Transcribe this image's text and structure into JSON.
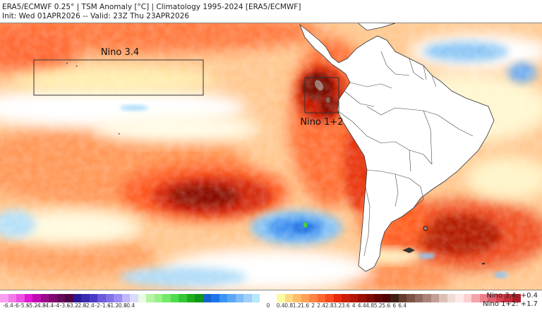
{
  "header": {
    "line1": "ERA5/ECMWF 0.25° | TSM Anomaly [°C] | Climatology 1995-2024 [ERA5/ECMWF]",
    "line2": "Init: Wed 01APR2026 -- Valid: 23Z Thu 23APR2026"
  },
  "map": {
    "regions": [
      {
        "label": "Nino 3.4"
      },
      {
        "label": "Nino 1+2"
      }
    ]
  },
  "colorbar": {
    "unit": "°C",
    "tick_labels": [
      "-6.4",
      "-6",
      "-5.6",
      "-5.2",
      "-4.8",
      "-4.4",
      "-4",
      "-3.6",
      "-3.2",
      "-2.8",
      "-2.4",
      "-2",
      "-1.6",
      "-1.2",
      "-0.8",
      "-0.4",
      "0",
      "0.4",
      "0.8",
      "1.2",
      "1.6",
      "2",
      "2.4",
      "2.8",
      "3.2",
      "3.6",
      "4",
      "4.4",
      "4.8",
      "5.2",
      "5.6",
      "6",
      "6.4"
    ],
    "neg_colors": [
      "#f8a0f0",
      "#f47ae8",
      "#ee52e0",
      "#e21ad4",
      "#c00cb0",
      "#9c0a8c",
      "#800870",
      "#640a5a",
      "#4e0646",
      "#2c1896",
      "#3a2ab0",
      "#4a3ac8",
      "#6c5ad8",
      "#8272e8",
      "#9c8cf4",
      "#c0b8fa",
      "#dcdafc",
      "#e8fce0",
      "#b4f4a4",
      "#98f088",
      "#74e868",
      "#50dc50",
      "#34c834",
      "#1cac1c",
      "#10961a",
      "#1464d0",
      "#1c74ea",
      "#3c94f4",
      "#5aa8f4",
      "#7ebcf6",
      "#9ed0f8",
      "#b6e8fa"
    ],
    "zero_color": "#ffffff",
    "pos_colors": [
      "#fcfca0",
      "#ffd884",
      "#ffbc6c",
      "#ffa058",
      "#ff8444",
      "#ff6630",
      "#f84a1c",
      "#e82a0a",
      "#cc1e08",
      "#b41606",
      "#9a1004",
      "#800c04",
      "#660602",
      "#500402",
      "#402014",
      "#643c30",
      "#7c5244",
      "#946a5e",
      "#aa8478",
      "#c29e94",
      "#dcc0b8",
      "#f0dcd6",
      "#fceae8",
      "#fcd0d0",
      "#f4a4a8",
      "#ec8088",
      "#e06070",
      "#d44450",
      "#c42e3a",
      "#b01c28"
    ]
  },
  "nino_indices": {
    "nino34": "Nino 3.4:  +0.4",
    "nino12": "Nino 1+2:  +1.7"
  }
}
